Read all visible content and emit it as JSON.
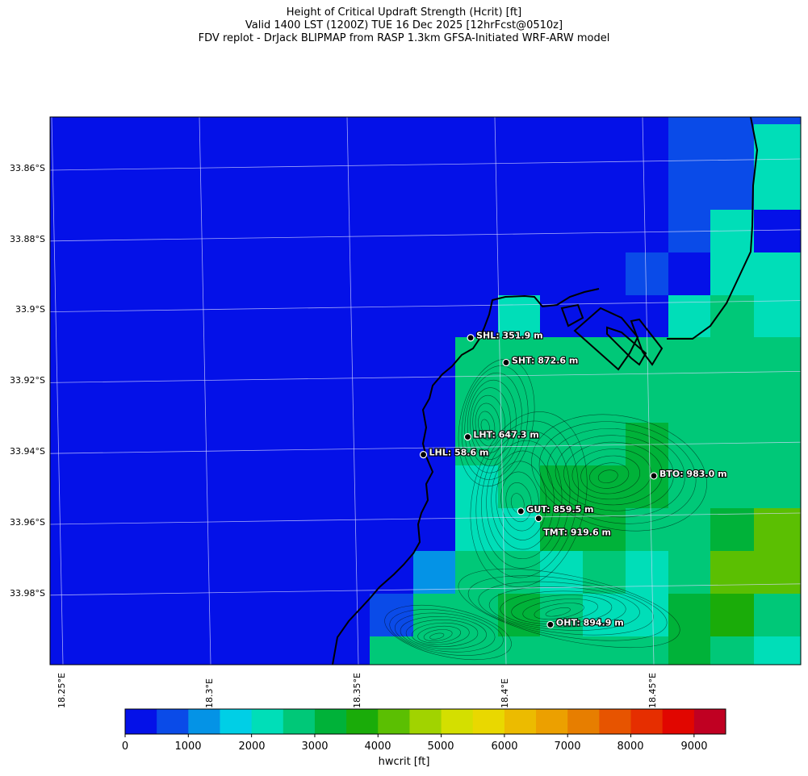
{
  "title": {
    "line1": "Height of Critical Updraft Strength (Hcrit) [ft]",
    "line2": "Valid 1400 LST (1200Z) TUE 16 Dec 2025 [12hrFcst@0510z]",
    "line3": "FDV replot - DrJack BLIPMAP from RASP 1.3km GFSA-Initiated WRF-ARW model"
  },
  "axes": {
    "lat_labels": [
      "33.86°S",
      "33.88°S",
      "33.9°S",
      "33.92°S",
      "33.94°S",
      "33.96°S",
      "33.98°S"
    ],
    "lon_labels": [
      "18.25°E",
      "18.3°E",
      "18.35°E",
      "18.4°E",
      "18.45°E"
    ]
  },
  "stations": [
    {
      "code": "SHL",
      "label": "SHL: 351.9 m",
      "lat": -33.908,
      "lon": 18.388
    },
    {
      "code": "SHT",
      "label": "SHT: 872.6 m",
      "lat": -33.915,
      "lon": 18.4
    },
    {
      "code": "LHT",
      "label": "LHT: 647.3 m",
      "lat": -33.936,
      "lon": 18.387
    },
    {
      "code": "LHL",
      "label": "LHL: 58.6 m",
      "lat": -33.941,
      "lon": 18.372
    },
    {
      "code": "BTO",
      "label": "BTO: 983.0 m",
      "lat": -33.947,
      "lon": 18.45
    },
    {
      "code": "GUT",
      "label": "GUT: 859.5 m",
      "lat": -33.957,
      "lon": 18.405
    },
    {
      "code": "TMT",
      "label": "TMT: 919.6 m",
      "lat": -33.959,
      "lon": 18.411
    },
    {
      "code": "OHT",
      "label": "OHT: 894.9 m",
      "lat": -33.989,
      "lon": 18.415
    }
  ],
  "colorbar": {
    "label": "hwcrit [ft]",
    "ticks": [
      "0",
      "1000",
      "2000",
      "3000",
      "4000",
      "5000",
      "6000",
      "7000",
      "8000",
      "9000"
    ],
    "colors": [
      "#0411e8",
      "#0a4be8",
      "#0493e6",
      "#00cfe6",
      "#00deb8",
      "#00c878",
      "#00b239",
      "#1aac09",
      "#5bbf02",
      "#a1d300",
      "#d4df00",
      "#e9d800",
      "#ecbb00",
      "#eca000",
      "#e77e00",
      "#e75400",
      "#e62e00",
      "#e10600",
      "#c00022"
    ]
  }
}
